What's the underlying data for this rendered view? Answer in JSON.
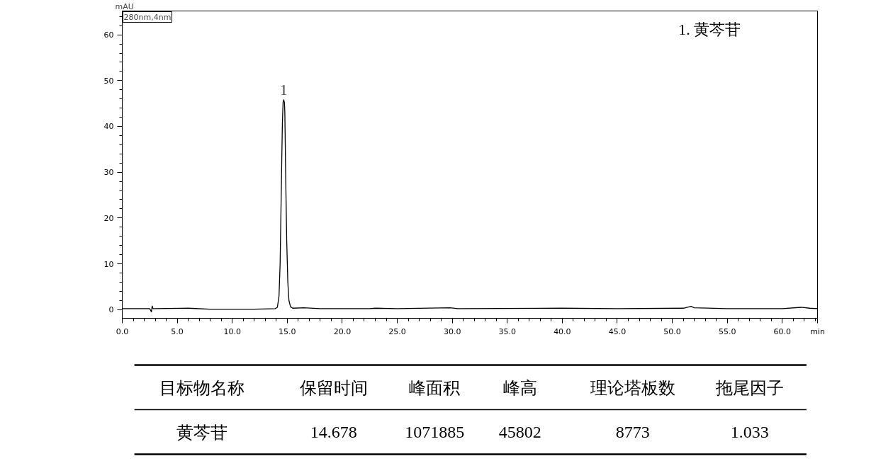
{
  "chart_data": {
    "type": "line",
    "xlabel": "min",
    "ylabel": "mAU",
    "x": [
      0,
      2.5,
      2.65,
      2.72,
      2.8,
      6,
      8,
      12,
      13.9,
      14.1,
      14.25,
      14.35,
      14.45,
      14.55,
      14.62,
      14.68,
      14.74,
      14.78,
      14.85,
      14.95,
      15.05,
      15.15,
      15.3,
      15.5,
      16.5,
      18,
      22.5,
      23,
      25,
      29.8,
      30.5,
      40,
      45,
      51,
      51.7,
      52,
      55,
      60,
      61.7,
      62.5,
      63.2
    ],
    "series": [
      {
        "color": "#000000",
        "values": [
          0.2,
          0.2,
          -0.5,
          0.8,
          0.2,
          0.3,
          0.1,
          0.1,
          0.2,
          0.5,
          3,
          10,
          25,
          40,
          45.3,
          45.8,
          45.2,
          43,
          30,
          15,
          6,
          2,
          0.6,
          0.3,
          0.4,
          0.2,
          0.2,
          0.3,
          0.2,
          0.4,
          0.2,
          0.3,
          0.2,
          0.3,
          0.7,
          0.4,
          0.2,
          0.2,
          0.5,
          0.3,
          0.2
        ]
      }
    ],
    "xlim": [
      0,
      63.2
    ],
    "ylim": [
      -1.9,
      65.2
    ],
    "xticks": [
      {
        "value": 0,
        "label": "0.0"
      },
      {
        "value": 5,
        "label": "5.0"
      },
      {
        "value": 10,
        "label": "10.0"
      },
      {
        "value": 15,
        "label": "15.0"
      },
      {
        "value": 20,
        "label": "20.0"
      },
      {
        "value": 25,
        "label": "25.0"
      },
      {
        "value": 30,
        "label": "30.0"
      },
      {
        "value": 35,
        "label": "35.0"
      },
      {
        "value": 40,
        "label": "40.0"
      },
      {
        "value": 45,
        "label": "45.0"
      },
      {
        "value": 50,
        "label": "50.0"
      },
      {
        "value": 55,
        "label": "55.0"
      },
      {
        "value": 60,
        "label": "60.0"
      },
      {
        "value": 1,
        "label": null
      },
      {
        "value": 2,
        "label": null
      },
      {
        "value": 3,
        "label": null
      },
      {
        "value": 4,
        "label": null
      },
      {
        "value": 6,
        "label": null
      },
      {
        "value": 7,
        "label": null
      },
      {
        "value": 8,
        "label": null
      },
      {
        "value": 9,
        "label": null
      },
      {
        "value": 11,
        "label": null
      },
      {
        "value": 12,
        "label": null
      },
      {
        "value": 13,
        "label": null
      },
      {
        "value": 14,
        "label": null
      },
      {
        "value": 16,
        "label": null
      },
      {
        "value": 17,
        "label": null
      },
      {
        "value": 18,
        "label": null
      },
      {
        "value": 19,
        "label": null
      },
      {
        "value": 21,
        "label": null
      },
      {
        "value": 22,
        "label": null
      },
      {
        "value": 23,
        "label": null
      },
      {
        "value": 24,
        "label": null
      },
      {
        "value": 26,
        "label": null
      },
      {
        "value": 27,
        "label": null
      },
      {
        "value": 28,
        "label": null
      },
      {
        "value": 29,
        "label": null
      },
      {
        "value": 31,
        "label": null
      },
      {
        "value": 32,
        "label": null
      },
      {
        "value": 33,
        "label": null
      },
      {
        "value": 34,
        "label": null
      },
      {
        "value": 36,
        "label": null
      },
      {
        "value": 37,
        "label": null
      },
      {
        "value": 38,
        "label": null
      },
      {
        "value": 39,
        "label": null
      },
      {
        "value": 41,
        "label": null
      },
      {
        "value": 42,
        "label": null
      },
      {
        "value": 43,
        "label": null
      },
      {
        "value": 44,
        "label": null
      },
      {
        "value": 46,
        "label": null
      },
      {
        "value": 47,
        "label": null
      },
      {
        "value": 48,
        "label": null
      },
      {
        "value": 49,
        "label": null
      },
      {
        "value": 51,
        "label": null
      },
      {
        "value": 52,
        "label": null
      },
      {
        "value": 53,
        "label": null
      },
      {
        "value": 54,
        "label": null
      },
      {
        "value": 56,
        "label": null
      },
      {
        "value": 57,
        "label": null
      },
      {
        "value": 58,
        "label": null
      },
      {
        "value": 59,
        "label": null
      },
      {
        "value": 61,
        "label": null
      },
      {
        "value": 62,
        "label": null
      },
      {
        "value": 63,
        "label": null
      }
    ],
    "yticks": [
      0,
      10,
      20,
      30,
      40,
      50,
      60,
      {
        "value": 2,
        "label": null
      },
      {
        "value": 4,
        "label": null
      },
      {
        "value": 6,
        "label": null
      },
      {
        "value": 8,
        "label": null
      },
      {
        "value": 12,
        "label": null
      },
      {
        "value": 14,
        "label": null
      },
      {
        "value": 16,
        "label": null
      },
      {
        "value": 18,
        "label": null
      },
      {
        "value": 22,
        "label": null
      },
      {
        "value": 24,
        "label": null
      },
      {
        "value": 26,
        "label": null
      },
      {
        "value": 28,
        "label": null
      },
      {
        "value": 32,
        "label": null
      },
      {
        "value": 34,
        "label": null
      },
      {
        "value": 36,
        "label": null
      },
      {
        "value": 38,
        "label": null
      },
      {
        "value": 42,
        "label": null
      },
      {
        "value": 44,
        "label": null
      },
      {
        "value": 46,
        "label": null
      },
      {
        "value": 48,
        "label": null
      },
      {
        "value": 52,
        "label": null
      },
      {
        "value": 54,
        "label": null
      },
      {
        "value": 56,
        "label": null
      },
      {
        "value": 58,
        "label": null
      },
      {
        "value": 62,
        "label": null
      },
      {
        "value": 64,
        "label": null
      }
    ],
    "grid": false,
    "marker": "none",
    "line_style": "solid",
    "annotations": [
      "280nm,4nm",
      "1.   黄芩苷",
      {
        "text": "1",
        "x": 14.68,
        "y": 45.8
      },
      "目标物名称",
      "保留时间",
      "峰面积",
      "峰高",
      "理论塔板数",
      "拖尾因子",
      "黄芩苷",
      "14.678",
      "1071885",
      "45802",
      "8773",
      "1.033"
    ]
  }
}
